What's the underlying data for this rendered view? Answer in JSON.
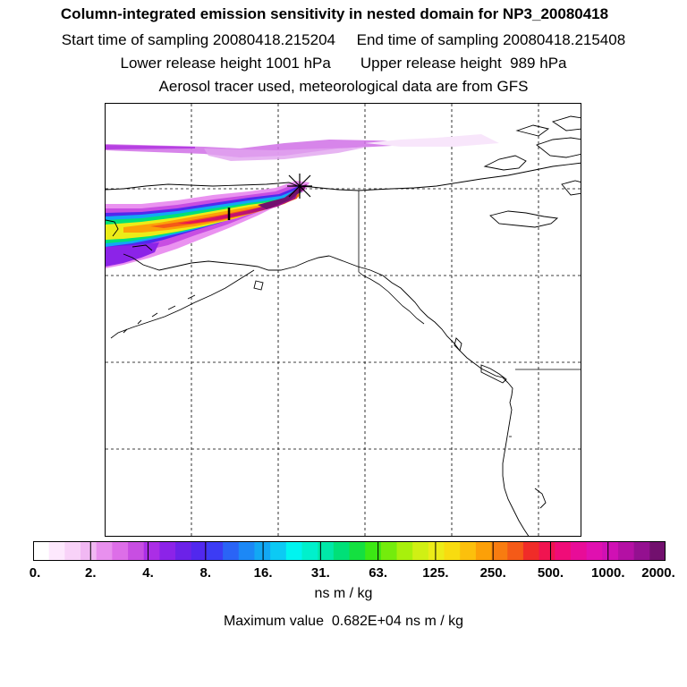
{
  "title": {
    "line1": "Column-integrated emission sensitivity in nested domain for NP3_20080418",
    "line2": "Start time of sampling 20080418.215204     End time of sampling 20080418.215408",
    "line3": "Lower release height 1001 hPa       Upper release height  989 hPa",
    "line4": "Aerosol tracer used, meteorological data are from GFS"
  },
  "colorbar": {
    "tick_labels": [
      "0.",
      "2.",
      "4.",
      "8.",
      "16.",
      "31.",
      "63.",
      "125.",
      "250.",
      "500.",
      "1000.",
      "2000."
    ],
    "colors": [
      "#ffffff",
      "#fde8fd",
      "#f8d2f8",
      "#f1b8f3",
      "#e890ee",
      "#dd6ee8",
      "#c84ee2",
      "#ab2ee6",
      "#8c23e8",
      "#6c22e8",
      "#5128ee",
      "#3c3cf4",
      "#2a64f6",
      "#1c88f6",
      "#12a8f4",
      "#0ccaf4",
      "#00f4f0",
      "#00f0cc",
      "#00e8a8",
      "#00e078",
      "#14e040",
      "#3ce814",
      "#74ec0c",
      "#a8f00c",
      "#d0f014",
      "#ecec18",
      "#f8dc10",
      "#fcc00c",
      "#fca008",
      "#f87c10",
      "#f45a18",
      "#f02c28",
      "#f01450",
      "#f00c78",
      "#e80c98",
      "#e010b0",
      "#d010b4",
      "#b410a4",
      "#941090",
      "#72106e"
    ],
    "unit": "ns m / kg",
    "max_label": "Maximum value  0.682E+04 ns m / kg"
  }
}
